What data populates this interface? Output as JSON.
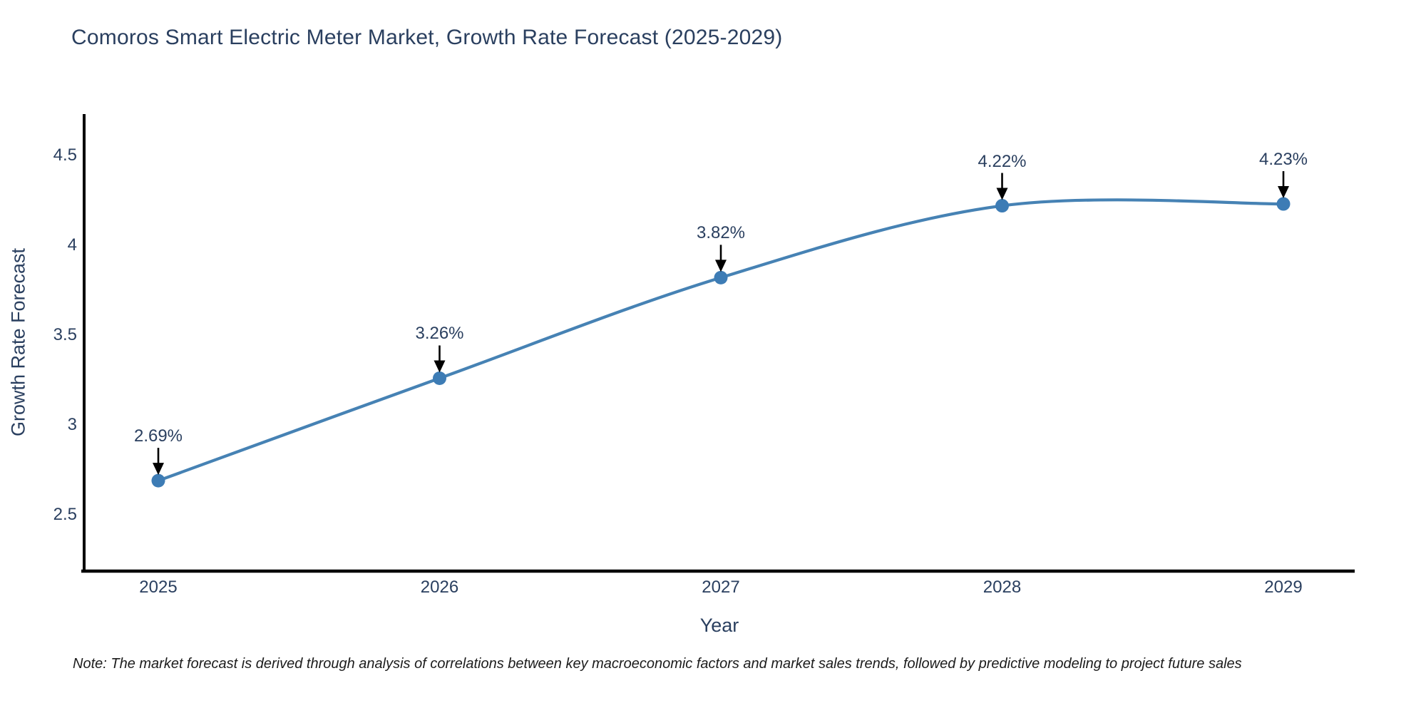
{
  "title": "Comoros Smart Electric Meter Market, Growth Rate Forecast (2025-2029)",
  "note": "Note: The market forecast is derived through analysis of correlations between key macroeconomic factors and market sales trends, followed by predictive modeling to project future sales",
  "chart_data": {
    "type": "line",
    "title": "Comoros Smart Electric Meter Market, Growth Rate Forecast (2025-2029)",
    "xlabel": "Year",
    "ylabel": "Growth Rate Forecast",
    "x": [
      2025,
      2026,
      2027,
      2028,
      2029
    ],
    "values": [
      2.69,
      3.26,
      3.82,
      4.22,
      4.23
    ],
    "point_labels": [
      "2.69%",
      "3.26%",
      "3.82%",
      "4.22%",
      "4.23%"
    ],
    "yticks": [
      2.5,
      3,
      3.5,
      4,
      4.5
    ],
    "ylim": [
      2.19,
      4.73
    ],
    "xlim": [
      2024.74,
      2029.25
    ],
    "grid": false,
    "legend": "none",
    "annotation_style": "value label above point with downward black arrow"
  },
  "colors": {
    "line": "#4682b4",
    "marker": "#3d7cb5",
    "arrow": "#000000",
    "spine": "#000000",
    "title_text": "#2a3f5f",
    "axis_text": "#2a3f5f",
    "note_text": "#1c1c1c",
    "background": "#ffffff"
  }
}
